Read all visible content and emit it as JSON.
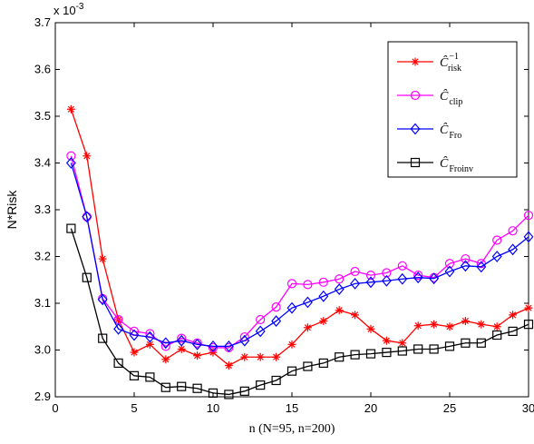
{
  "chart_data": {
    "type": "line",
    "xlabel": "n (N=95, n=200)",
    "ylabel": "N*Risk",
    "y_multiplier": "x 10",
    "y_multiplier_exp": "-3",
    "xlim": [
      0,
      30
    ],
    "ylim": [
      2.9,
      3.7
    ],
    "xticks": [
      0,
      5,
      10,
      15,
      20,
      25,
      30
    ],
    "yticks": [
      2.9,
      3.0,
      3.1,
      3.2,
      3.3,
      3.4,
      3.5,
      3.6,
      3.7
    ],
    "grid": false,
    "legend_position": "top-right",
    "x": [
      1,
      2,
      3,
      4,
      5,
      6,
      7,
      8,
      9,
      10,
      11,
      12,
      13,
      14,
      15,
      16,
      17,
      18,
      19,
      20,
      21,
      22,
      23,
      24,
      25,
      26,
      27,
      28,
      29,
      30
    ],
    "series": [
      {
        "name_main": "Ĉ",
        "name_sub": "risk",
        "name_sup": "−1",
        "color": "#ff0000",
        "marker": "star",
        "values": [
          3.515,
          3.415,
          3.195,
          3.065,
          2.995,
          3.012,
          2.98,
          3.002,
          2.988,
          2.995,
          2.967,
          2.985,
          2.985,
          2.985,
          3.012,
          3.048,
          3.062,
          3.085,
          3.075,
          3.045,
          3.02,
          3.015,
          3.052,
          3.055,
          3.05,
          3.062,
          3.055,
          3.05,
          3.075,
          3.09
        ]
      },
      {
        "name_main": "Ĉ",
        "name_sub": "clip",
        "name_sup": "",
        "color": "#ff00ff",
        "marker": "circle",
        "values": [
          3.415,
          3.285,
          3.11,
          3.065,
          3.04,
          3.035,
          3.008,
          3.025,
          3.015,
          3.005,
          3.005,
          3.028,
          3.065,
          3.092,
          3.142,
          3.14,
          3.145,
          3.152,
          3.168,
          3.16,
          3.165,
          3.18,
          3.16,
          3.155,
          3.185,
          3.195,
          3.185,
          3.235,
          3.255,
          3.288
        ]
      },
      {
        "name_main": "Ĉ",
        "name_sub": "Fro",
        "name_sup": "",
        "color": "#0000ff",
        "marker": "diamond",
        "values": [
          3.4,
          3.285,
          3.108,
          3.045,
          3.032,
          3.028,
          3.015,
          3.02,
          3.012,
          3.008,
          3.008,
          3.02,
          3.04,
          3.062,
          3.09,
          3.102,
          3.115,
          3.13,
          3.142,
          3.145,
          3.148,
          3.152,
          3.155,
          3.153,
          3.168,
          3.18,
          3.178,
          3.2,
          3.215,
          3.242
        ]
      },
      {
        "name_main": "Ĉ",
        "name_sub": "Froinv",
        "name_sup": "",
        "color": "#000000",
        "marker": "square",
        "values": [
          3.26,
          3.155,
          3.025,
          2.972,
          2.945,
          2.942,
          2.92,
          2.922,
          2.918,
          2.908,
          2.905,
          2.912,
          2.925,
          2.935,
          2.955,
          2.965,
          2.972,
          2.985,
          2.99,
          2.992,
          2.995,
          2.998,
          3.002,
          3.002,
          3.008,
          3.015,
          3.015,
          3.032,
          3.04,
          3.055
        ]
      }
    ]
  }
}
